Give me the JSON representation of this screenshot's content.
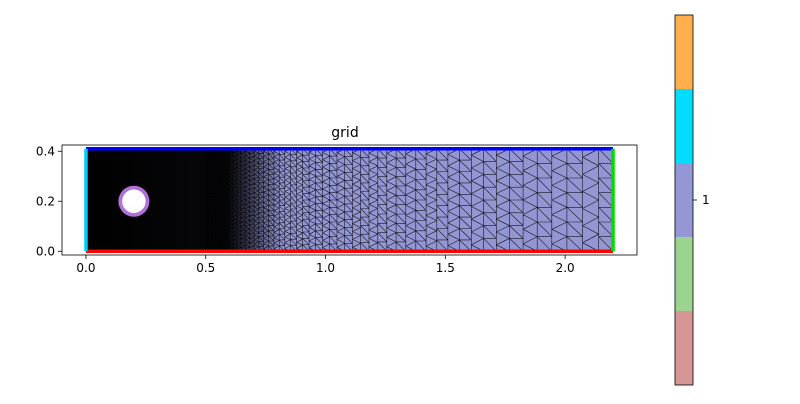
{
  "chart_data": [
    {
      "type": "mesh",
      "title": "grid",
      "xlabel": "",
      "ylabel": "",
      "xlim": [
        -0.1,
        2.3
      ],
      "ylim": [
        -0.015,
        0.425
      ],
      "xticks": [
        0.0,
        0.5,
        1.0,
        1.5,
        2.0
      ],
      "xtick_labels": [
        "0.0",
        "0.5",
        "1.0",
        "1.5",
        "2.0"
      ],
      "yticks": [
        0.0,
        0.2,
        0.4
      ],
      "ytick_labels": [
        "0.0",
        "0.2",
        "0.4"
      ],
      "domain": {
        "x": [
          0,
          2.2
        ],
        "y": [
          0,
          0.41
        ]
      },
      "obstacle": {
        "shape": "circle",
        "cx": 0.2,
        "cy": 0.2,
        "r": 0.05
      },
      "mesh_color": "#9396d2",
      "edge_color": "#000000",
      "boundaries": [
        {
          "side": "bottom",
          "color": "#ff0000"
        },
        {
          "side": "top",
          "color": "#0000ff"
        },
        {
          "side": "left",
          "color": "#00ccff"
        },
        {
          "side": "right",
          "color": "#00dd00"
        },
        {
          "side": "obstacle",
          "color": "#b070d8"
        }
      ]
    },
    {
      "type": "colorbar",
      "tick_labels": [
        "1"
      ],
      "colors": [
        "#d69696",
        "#9ad48e",
        "#9596d6",
        "#00ddff",
        "#ffb04d"
      ]
    }
  ]
}
